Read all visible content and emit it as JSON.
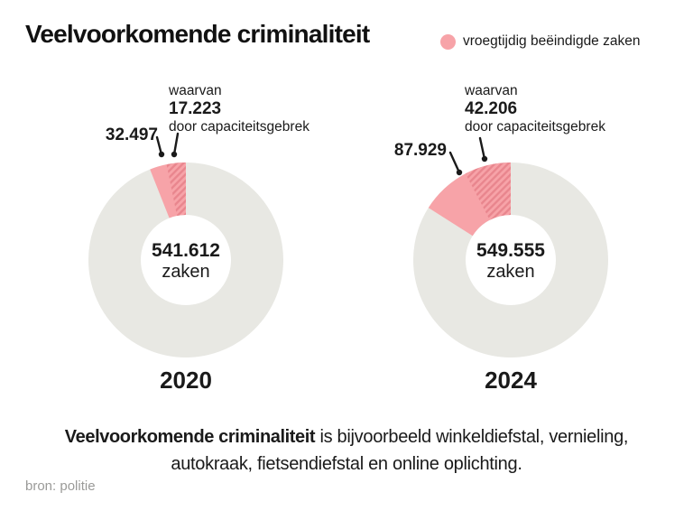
{
  "header": {
    "title": "Veelvoorkomende criminaliteit",
    "legend": {
      "label": "vroegtijdig beëindigde zaken",
      "color": "#f7a3a8"
    }
  },
  "chart_data": {
    "type": "pie",
    "variant": "two-donut-comparison",
    "legend_position": "top-right",
    "colors": {
      "ring": "#e8e8e3",
      "highlight": "#f7a3a8",
      "hatch_stripe": "#e9868e",
      "line": "#1a1a1a"
    },
    "donuts": [
      {
        "year": "2020",
        "total": 541612,
        "total_label": "541.612",
        "center_unit": "zaken",
        "early_ended": 32497,
        "early_ended_label": "32.497",
        "capacity_shortage": 17223,
        "capacity_label": "17.223",
        "ann_prefix": "waarvan",
        "ann_suffix": "door capaciteitsgebrek"
      },
      {
        "year": "2024",
        "total": 549555,
        "total_label": "549.555",
        "center_unit": "zaken",
        "early_ended": 87929,
        "early_ended_label": "87.929",
        "capacity_shortage": 42206,
        "capacity_label": "42.206",
        "ann_prefix": "waarvan",
        "ann_suffix": "door capaciteitsgebrek"
      }
    ]
  },
  "description": {
    "line1_bold": "Veelvoorkomende criminaliteit",
    "line1_rest": " is bijvoorbeeld winkeldiefstal, vernieling,",
    "line2": "autokraak, fietsendiefstal en online oplichting."
  },
  "source": "bron: politie"
}
